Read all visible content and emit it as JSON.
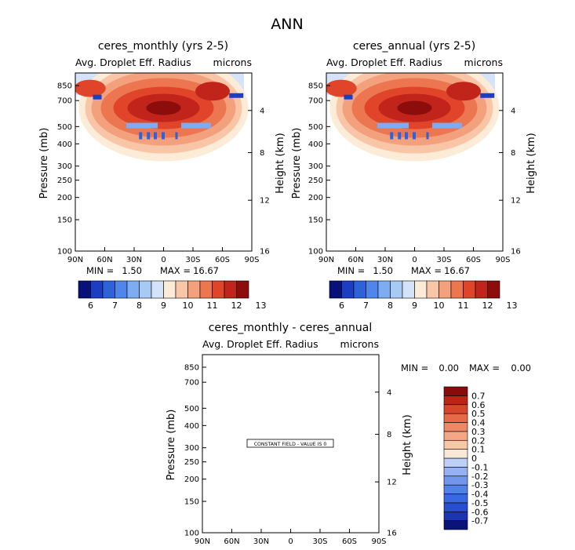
{
  "figure": {
    "title": "ANN",
    "background": "#ffffff"
  },
  "colors": {
    "full_scale": [
      "#08107a",
      "#1b3fc0",
      "#2e62d8",
      "#4f86ec",
      "#7eacf2",
      "#a9c9f5",
      "#d4e3f8",
      "#fcebd7",
      "#f8c6a6",
      "#f3a07c",
      "#ec7650",
      "#e0452a",
      "#c0241a",
      "#8c0d0c"
    ],
    "diff_scale": [
      "#0a1478",
      "#1b34b4",
      "#264ed2",
      "#3a68e2",
      "#5281ea",
      "#7196ec",
      "#96b0f0",
      "#bcd0f6",
      "#f9e8d6",
      "#f7c7a8",
      "#f4a785",
      "#ee8864",
      "#e76a48",
      "#d7462c",
      "#bb2516",
      "#880c0c"
    ]
  },
  "chart_data": [
    {
      "type": "heatmap",
      "title": "ceres_monthly (yrs 2-5)",
      "subtitle_left": "Avg. Droplet Eff. Radius",
      "subtitle_right": "microns",
      "xlabel": "",
      "ylabel": "Pressure (mb)",
      "ylabel_right": "Height (km)",
      "x_ticks": [
        "90N",
        "60N",
        "30N",
        "0",
        "30S",
        "60S",
        "90S"
      ],
      "y_ticks": [
        "100",
        "150",
        "200",
        "250",
        "300",
        "400",
        "500",
        "700",
        "850"
      ],
      "y_ticks_right": [
        "16",
        "12",
        "8",
        "4"
      ],
      "y_scale": "log",
      "ylim": [
        1000,
        100
      ],
      "min_label": "MIN =",
      "min_value": "1.50",
      "max_label": "MAX =",
      "max_value": "16.67",
      "colorbar_labels": [
        "6",
        "7",
        "8",
        "9",
        "10",
        "11",
        "12",
        "13"
      ],
      "colorbar_orientation": "horizontal",
      "field_summary": [
        {
          "lat": 90,
          "top_mb": 760,
          "peak": 11.5
        },
        {
          "lat": 75,
          "top_mb": 730,
          "peak": 11
        },
        {
          "lat": 60,
          "top_mb": 700,
          "peak": 11.5
        },
        {
          "lat": 45,
          "top_mb": 610,
          "peak": 12
        },
        {
          "lat": 30,
          "top_mb": 540,
          "peak": 12.5
        },
        {
          "lat": 15,
          "top_mb": 520,
          "peak": 13
        },
        {
          "lat": 0,
          "top_mb": 520,
          "peak": 13.5
        },
        {
          "lat": -15,
          "top_mb": 520,
          "peak": 13
        },
        {
          "lat": -30,
          "top_mb": 560,
          "peak": 12.5
        },
        {
          "lat": -45,
          "top_mb": 640,
          "peak": 12
        },
        {
          "lat": -60,
          "top_mb": 720,
          "peak": 11.5
        },
        {
          "lat": -75,
          "top_mb": 790,
          "peak": 11
        }
      ]
    },
    {
      "type": "heatmap",
      "title": "ceres_annual (yrs 2-5)",
      "subtitle_left": "Avg. Droplet Eff. Radius",
      "subtitle_right": "microns",
      "xlabel": "",
      "ylabel": "Pressure (mb)",
      "ylabel_right": "Height (km)",
      "x_ticks": [
        "90N",
        "60N",
        "30N",
        "0",
        "30S",
        "60S",
        "90S"
      ],
      "y_ticks": [
        "100",
        "150",
        "200",
        "250",
        "300",
        "400",
        "500",
        "700",
        "850"
      ],
      "y_ticks_right": [
        "16",
        "12",
        "8",
        "4"
      ],
      "y_scale": "log",
      "ylim": [
        1000,
        100
      ],
      "min_label": "MIN =",
      "min_value": "1.50",
      "max_label": "MAX =",
      "max_value": "16.67",
      "colorbar_labels": [
        "6",
        "7",
        "8",
        "9",
        "10",
        "11",
        "12",
        "13"
      ],
      "colorbar_orientation": "horizontal"
    },
    {
      "type": "heatmap",
      "title": "ceres_monthly - ceres_annual",
      "subtitle_left": "Avg. Droplet Eff. Radius",
      "subtitle_right": "microns",
      "xlabel": "",
      "ylabel": "Pressure (mb)",
      "ylabel_right": "Height (km)",
      "x_ticks": [
        "90N",
        "60N",
        "30N",
        "0",
        "30S",
        "60S",
        "90S"
      ],
      "y_ticks": [
        "100",
        "150",
        "200",
        "250",
        "300",
        "400",
        "500",
        "700",
        "850"
      ],
      "y_ticks_right": [
        "16",
        "12",
        "8",
        "4"
      ],
      "y_scale": "log",
      "ylim": [
        1000,
        100
      ],
      "min_label": "MIN =",
      "min_value": "0.00",
      "max_label": "MAX =",
      "max_value": "0.00",
      "annotation": "CONSTANT FIELD - VALUE IS 0",
      "colorbar_labels": [
        "0.7",
        "0.6",
        "0.5",
        "0.4",
        "0.3",
        "0.2",
        "0.1",
        "0",
        "-0.1",
        "-0.2",
        "-0.3",
        "-0.4",
        "-0.5",
        "-0.6",
        "-0.7"
      ],
      "colorbar_orientation": "vertical"
    }
  ]
}
